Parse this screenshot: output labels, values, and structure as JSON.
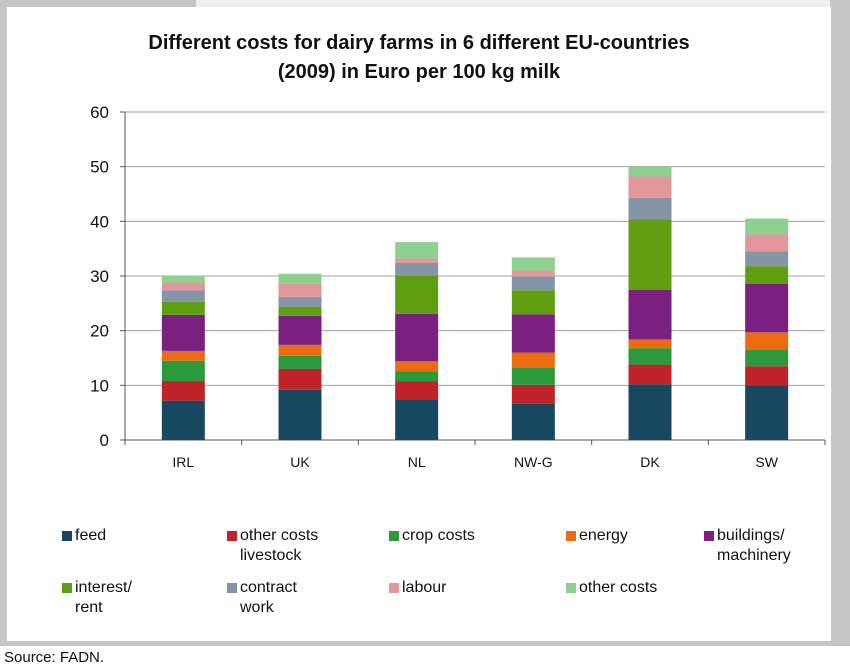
{
  "header_strip_text": "",
  "source": "Source: FADN.",
  "chart_data": {
    "type": "bar",
    "stacked": true,
    "title": "Different costs for dairy farms in 6 different EU-countries\n(2009) in Euro per 100 kg milk",
    "xlabel": "",
    "ylabel": "",
    "ylim": [
      0,
      60
    ],
    "yticks": [
      "0",
      "10",
      "20",
      "30",
      "40",
      "50",
      "60"
    ],
    "grid": true,
    "legend_position": "bottom",
    "categories": [
      "IRL",
      "UK",
      "NL",
      "NW-G",
      "DK",
      "SW"
    ],
    "series": [
      {
        "name": "feed",
        "legend_label": "feed",
        "color": "#17485f",
        "values": [
          7.2,
          9.2,
          7.4,
          6.6,
          10.2,
          10.0
        ]
      },
      {
        "name": "other costs livestock",
        "legend_label": "other costs\nlivestock",
        "color": "#c0222a",
        "values": [
          3.6,
          3.8,
          3.3,
          3.5,
          3.6,
          3.5
        ]
      },
      {
        "name": "crop costs",
        "legend_label": "crop costs",
        "color": "#2a9a3c",
        "values": [
          3.7,
          2.4,
          1.9,
          3.2,
          3.0,
          3.1
        ]
      },
      {
        "name": "energy",
        "legend_label": "energy",
        "color": "#ea6b10",
        "values": [
          1.8,
          2.0,
          1.8,
          2.7,
          1.6,
          3.1
        ]
      },
      {
        "name": "buildings/ machinery",
        "legend_label": "buildings/\nmachinery",
        "color": "#7b1f80",
        "values": [
          6.6,
          5.3,
          8.7,
          7.0,
          9.1,
          8.9
        ]
      },
      {
        "name": "interest/ rent",
        "legend_label": "interest/\nrent",
        "color": "#5f9e10",
        "values": [
          2.4,
          1.7,
          6.9,
          4.4,
          12.9,
          3.2
        ]
      },
      {
        "name": "contract work",
        "legend_label": "contract\nwork",
        "color": "#8395a6",
        "values": [
          2.1,
          1.8,
          2.4,
          2.5,
          3.9,
          2.7
        ]
      },
      {
        "name": "labour",
        "legend_label": "labour",
        "color": "#e2979b",
        "values": [
          1.4,
          2.4,
          0.8,
          1.1,
          3.9,
          3.1
        ]
      },
      {
        "name": "other costs",
        "legend_label": "other costs",
        "color": "#8ed08f",
        "values": [
          1.3,
          1.8,
          3.0,
          2.4,
          1.8,
          2.9
        ]
      }
    ]
  }
}
